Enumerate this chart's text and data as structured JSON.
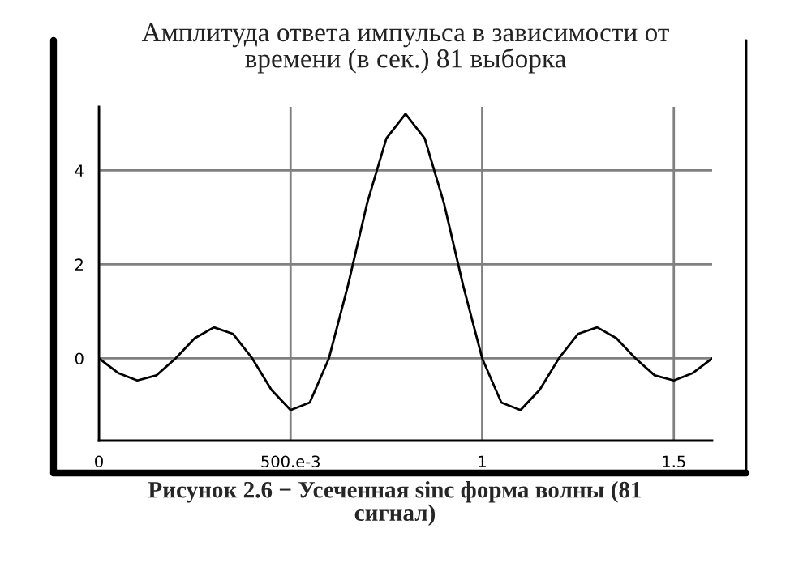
{
  "chart_data": {
    "type": "line",
    "title": "Амплитуда ответа импульса в зависимости от\nвремени (в сек.) 81 выборка",
    "x": [
      0,
      0.05,
      0.1,
      0.15,
      0.2,
      0.25,
      0.3,
      0.35,
      0.4,
      0.45,
      0.5,
      0.55,
      0.6,
      0.65,
      0.7,
      0.75,
      0.8,
      0.85,
      0.9,
      0.95,
      1.0,
      1.05,
      1.1,
      1.15,
      1.2,
      1.25,
      1.3,
      1.35,
      1.4,
      1.45,
      1.5,
      1.55,
      1.6
    ],
    "series": [
      {
        "color": "#000000",
        "values": [
          0,
          -0.31,
          -0.47,
          -0.36,
          0,
          0.43,
          0.66,
          0.52,
          0,
          -0.67,
          -1.1,
          -0.94,
          0,
          1.56,
          3.31,
          4.68,
          5.2,
          4.68,
          3.31,
          1.56,
          0,
          -0.94,
          -1.1,
          -0.67,
          0,
          0.52,
          0.66,
          0.43,
          0,
          -0.36,
          -0.47,
          -0.31,
          0
        ]
      }
    ],
    "xlim": [
      0,
      1.6
    ],
    "ylim": [
      -1.75,
      5.35
    ],
    "xticks": [
      0,
      {
        "value": 0.5,
        "label": "500.e-3"
      },
      1,
      1.5
    ],
    "yticks": [
      0,
      2,
      4
    ],
    "grid": true,
    "annotations": [
      "Рисунок 2.6 − Усеченная sinc форма волны (81\nсигнал)"
    ]
  }
}
